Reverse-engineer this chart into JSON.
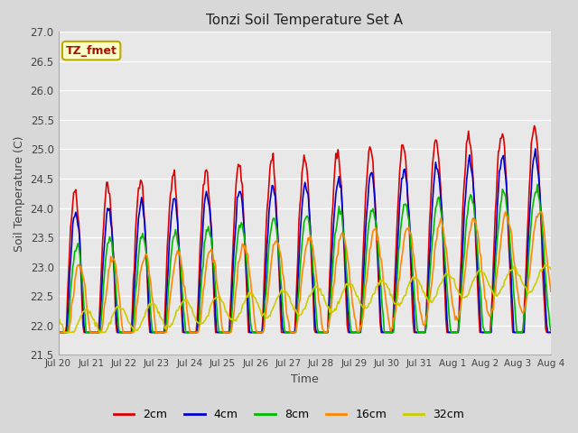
{
  "title": "Tonzi Soil Temperature Set A",
  "xlabel": "Time",
  "ylabel": "Soil Temperature (C)",
  "ylim": [
    21.5,
    27.0
  ],
  "yticks": [
    21.5,
    22.0,
    22.5,
    23.0,
    23.5,
    24.0,
    24.5,
    25.0,
    25.5,
    26.0,
    26.5,
    27.0
  ],
  "annotation_text": "TZ_fmet",
  "annotation_color": "#aa1100",
  "annotation_bg": "#ffffcc",
  "annotation_border": "#bbaa00",
  "fig_bg": "#d8d8d8",
  "plot_bg": "#e8e8e8",
  "series": [
    {
      "label": "2cm",
      "color": "#dd0000",
      "lw": 1.2,
      "amp": 2.3,
      "phase": 0.0,
      "trend": 0.075,
      "base": 22.0,
      "noise": 0.06
    },
    {
      "label": "4cm",
      "color": "#0000cc",
      "lw": 1.2,
      "amp": 1.9,
      "phase": 0.18,
      "trend": 0.07,
      "base": 22.0,
      "noise": 0.05
    },
    {
      "label": "8cm",
      "color": "#00bb00",
      "lw": 1.2,
      "amp": 1.3,
      "phase": 0.4,
      "trend": 0.068,
      "base": 22.05,
      "noise": 0.04
    },
    {
      "label": "16cm",
      "color": "#ff8800",
      "lw": 1.2,
      "amp": 0.85,
      "phase": 0.9,
      "trend": 0.065,
      "base": 22.15,
      "noise": 0.04
    },
    {
      "label": "32cm",
      "color": "#cccc00",
      "lw": 1.2,
      "amp": 0.22,
      "phase": 2.2,
      "trend": 0.055,
      "base": 22.0,
      "noise": 0.02
    }
  ],
  "n_points": 480,
  "n_days": 15,
  "xtick_labels": [
    "Jul 20",
    "Jul 21",
    "Jul 22",
    "Jul 23",
    "Jul 24",
    "Jul 25",
    "Jul 26",
    "Jul 27",
    "Jul 28",
    "Jul 29",
    "Jul 30",
    "Jul 31",
    "Aug 1",
    "Aug 2",
    "Aug 3",
    "Aug 4"
  ],
  "grid_color": "#ffffff",
  "grid_lw": 1.0,
  "figsize": [
    6.4,
    4.8
  ],
  "dpi": 100
}
